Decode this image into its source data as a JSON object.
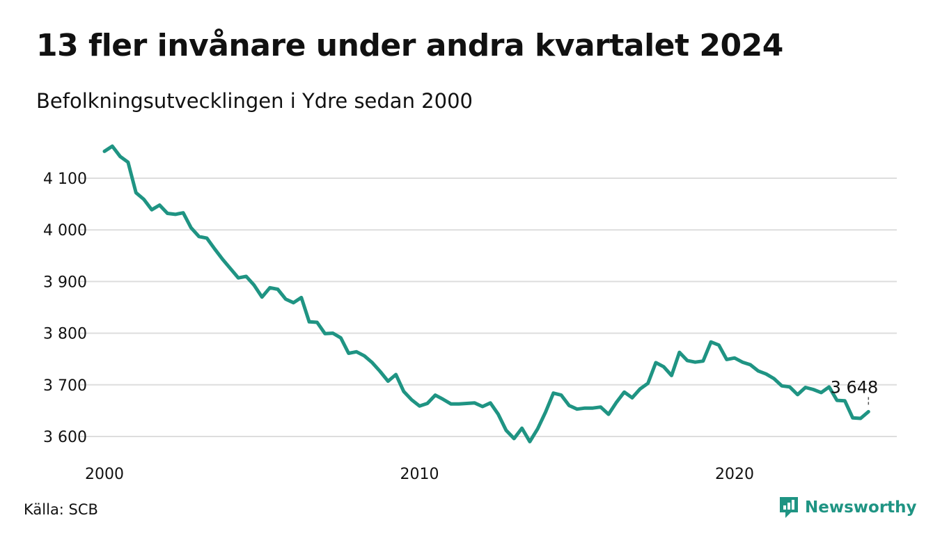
{
  "header": {
    "title": "13 fler invånare under andra kvartalet 2024",
    "subtitle": "Befolkningsutvecklingen i Ydre sedan 2000"
  },
  "footer": {
    "source": "Källa: SCB",
    "brand": "Newsworthy",
    "brand_color": "#1f9483"
  },
  "chart_data": {
    "type": "line",
    "title": "13 fler invånare under andra kvartalet 2024",
    "subtitle": "Befolkningsutvecklingen i Ydre sedan 2000",
    "x_start": "2000 Q1",
    "x_step": "quarter",
    "xlim": [
      2000,
      2024.8
    ],
    "ylim": [
      3585,
      4170
    ],
    "x_ticks": [
      2000,
      2010,
      2020
    ],
    "x_tick_labels": [
      "2000",
      "2010",
      "2020"
    ],
    "y_ticks": [
      3600,
      3700,
      3800,
      3900,
      4000,
      4100
    ],
    "y_tick_labels": [
      "3 600",
      "3 700",
      "3 800",
      "3 900",
      "4 000",
      "4 100"
    ],
    "grid": "horizontal",
    "line_color": "#1f9483",
    "series": [
      {
        "values": [
          4152,
          4162,
          4142,
          4131,
          4072,
          4059,
          4039,
          4048,
          4032,
          4030,
          4033,
          4004,
          3987,
          3984,
          3963,
          3943,
          3925,
          3907,
          3910,
          3893,
          3870,
          3888,
          3885,
          3866,
          3859,
          3869,
          3822,
          3821,
          3799,
          3800,
          3791,
          3761,
          3764,
          3756,
          3743,
          3726,
          3707,
          3720,
          3687,
          3671,
          3659,
          3664,
          3680,
          3672,
          3663,
          3663,
          3664,
          3665,
          3658,
          3665,
          3643,
          3612,
          3596,
          3616,
          3590,
          3615,
          3647,
          3684,
          3680,
          3660,
          3653,
          3655,
          3655,
          3657,
          3643,
          3666,
          3686,
          3675,
          3692,
          3703,
          3743,
          3735,
          3718,
          3763,
          3747,
          3744,
          3746,
          3783,
          3777,
          3749,
          3752,
          3744,
          3739,
          3727,
          3721,
          3712,
          3698,
          3696,
          3681,
          3695,
          3691,
          3685,
          3696,
          3670,
          3669,
          3636,
          3635,
          3648
        ]
      }
    ],
    "last_value_label": "3 648"
  }
}
